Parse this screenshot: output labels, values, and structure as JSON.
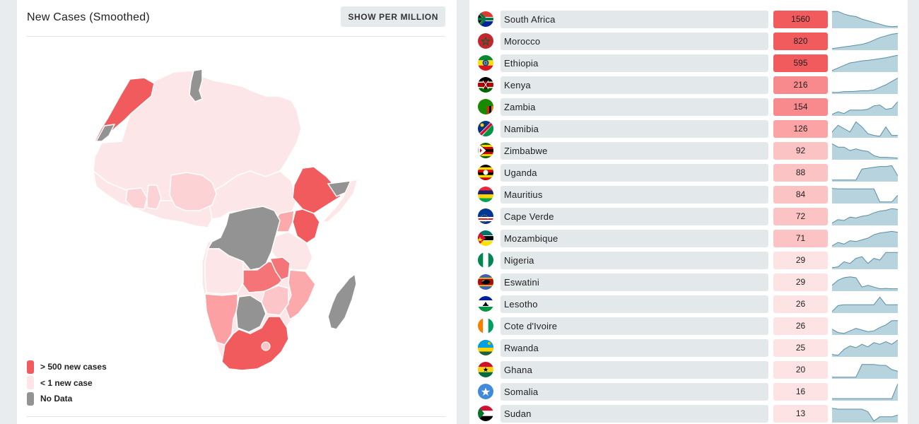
{
  "map_panel": {
    "title": "New Cases (Smoothed)",
    "per_million_label": "SHOW PER MILLION",
    "legend": [
      {
        "label": "> 500 new cases",
        "color": "#f25b5e"
      },
      {
        "label": "< 1 new case",
        "color": "#fde6e7"
      },
      {
        "label": "No Data",
        "color": "#939393"
      }
    ]
  },
  "table": {
    "rows": [
      {
        "country": "South Africa",
        "value": "1560",
        "flag": "south-africa-flag"
      },
      {
        "country": "Morocco",
        "value": "820",
        "flag": "morocco-flag"
      },
      {
        "country": "Ethiopia",
        "value": "595",
        "flag": "ethiopia-flag"
      },
      {
        "country": "Kenya",
        "value": "216",
        "flag": "kenya-flag"
      },
      {
        "country": "Zambia",
        "value": "154",
        "flag": "zambia-flag"
      },
      {
        "country": "Namibia",
        "value": "126",
        "flag": "namibia-flag"
      },
      {
        "country": "Zimbabwe",
        "value": "92",
        "flag": "zimbabwe-flag"
      },
      {
        "country": "Uganda",
        "value": "88",
        "flag": "uganda-flag"
      },
      {
        "country": "Mauritius",
        "value": "84",
        "flag": "mauritius-flag"
      },
      {
        "country": "Cape Verde",
        "value": "72",
        "flag": "cape-verde-flag"
      },
      {
        "country": "Mozambique",
        "value": "71",
        "flag": "mozambique-flag"
      },
      {
        "country": "Nigeria",
        "value": "29",
        "flag": "nigeria-flag"
      },
      {
        "country": "Eswatini",
        "value": "29",
        "flag": "eswatini-flag"
      },
      {
        "country": "Lesotho",
        "value": "26",
        "flag": "lesotho-flag"
      },
      {
        "country": "Cote d'Ivoire",
        "value": "26",
        "flag": "cote-divoire-flag"
      },
      {
        "country": "Rwanda",
        "value": "25",
        "flag": "rwanda-flag"
      },
      {
        "country": "Ghana",
        "value": "20",
        "flag": "ghana-flag"
      },
      {
        "country": "Somalia",
        "value": "16",
        "flag": "somalia-flag"
      },
      {
        "country": "Sudan",
        "value": "13",
        "flag": "sudan-flag"
      }
    ]
  }
}
